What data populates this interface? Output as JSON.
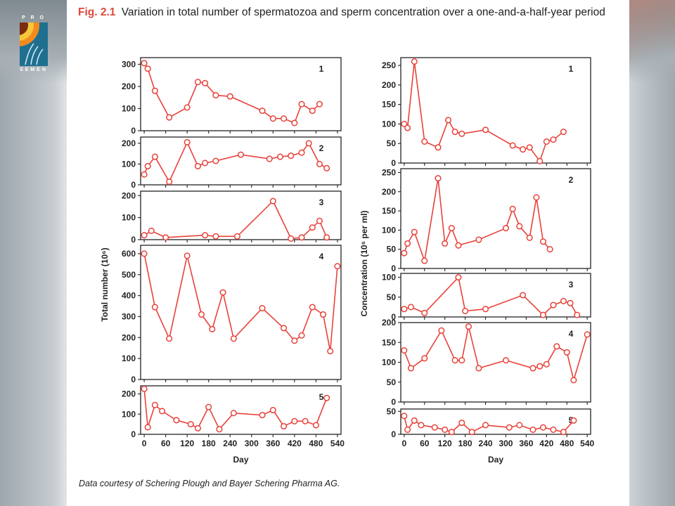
{
  "slide": {
    "logo": {
      "top_text": "P R O",
      "bottom_text": "SEMEN"
    },
    "figure_label": "Fig. 2.1",
    "figure_title": "Variation in total number of spermatozoa and sperm concentration over a one-and-a-half-year period",
    "credit": "Data courtesy of Schering Plough and Bayer Schering Pharma AG."
  },
  "colors": {
    "series": "#e8423a",
    "axis": "#222222",
    "title_label": "#e0453c"
  },
  "chart_data": [
    {
      "type": "line",
      "title": "",
      "panel_label": "1",
      "xlabel": "Day",
      "ylabel": "Total number (10⁶)",
      "xlim": [
        -10,
        550
      ],
      "ylim": [
        0,
        330
      ],
      "yticks": [
        0,
        100,
        200,
        300
      ],
      "xticks": [
        0,
        60,
        120,
        180,
        240,
        300,
        360,
        420,
        480,
        540
      ],
      "series": [
        {
          "x": [
            0,
            10,
            30,
            70,
            120,
            150,
            170,
            200,
            240,
            330,
            360,
            390,
            420,
            440,
            470,
            490
          ],
          "y": [
            305,
            280,
            180,
            60,
            105,
            220,
            215,
            160,
            155,
            90,
            55,
            55,
            35,
            120,
            90,
            120
          ]
        }
      ]
    },
    {
      "type": "line",
      "title": "",
      "panel_label": "2",
      "xlabel": "Day",
      "ylabel": "Total number (10⁶)",
      "xlim": [
        -10,
        550
      ],
      "ylim": [
        0,
        230
      ],
      "yticks": [
        0,
        100,
        200
      ],
      "xticks": [
        0,
        60,
        120,
        180,
        240,
        300,
        360,
        420,
        480,
        540
      ],
      "series": [
        {
          "x": [
            0,
            10,
            30,
            70,
            120,
            150,
            170,
            200,
            270,
            350,
            380,
            410,
            440,
            460,
            490,
            510
          ],
          "y": [
            50,
            90,
            135,
            15,
            205,
            90,
            105,
            115,
            145,
            125,
            135,
            140,
            155,
            200,
            100,
            80
          ]
        }
      ]
    },
    {
      "type": "line",
      "title": "",
      "panel_label": "3",
      "xlabel": "Day",
      "ylabel": "Total number (10⁶)",
      "xlim": [
        -10,
        550
      ],
      "ylim": [
        0,
        220
      ],
      "yticks": [
        0,
        100,
        200
      ],
      "xticks": [
        0,
        60,
        120,
        180,
        240,
        300,
        360,
        420,
        480,
        540
      ],
      "series": [
        {
          "x": [
            0,
            20,
            60,
            170,
            200,
            260,
            360,
            410,
            440,
            470,
            490,
            510
          ],
          "y": [
            20,
            40,
            10,
            20,
            15,
            15,
            175,
            5,
            10,
            55,
            85,
            10
          ]
        }
      ]
    },
    {
      "type": "line",
      "title": "",
      "panel_label": "4",
      "xlabel": "Day",
      "ylabel": "Total number (10⁶)",
      "xlim": [
        -10,
        550
      ],
      "ylim": [
        0,
        640
      ],
      "yticks": [
        0,
        100,
        200,
        300,
        400,
        500,
        600
      ],
      "xticks": [
        0,
        60,
        120,
        180,
        240,
        300,
        360,
        420,
        480,
        540
      ],
      "series": [
        {
          "x": [
            0,
            30,
            70,
            120,
            160,
            190,
            220,
            250,
            330,
            390,
            420,
            440,
            470,
            500,
            520,
            540
          ],
          "y": [
            600,
            345,
            195,
            590,
            310,
            240,
            415,
            195,
            340,
            245,
            185,
            210,
            345,
            310,
            135,
            540
          ]
        }
      ]
    },
    {
      "type": "line",
      "title": "",
      "panel_label": "5",
      "xlabel": "Day",
      "ylabel": "Total number (10⁶)",
      "xlim": [
        -10,
        550
      ],
      "ylim": [
        0,
        240
      ],
      "yticks": [
        0,
        100,
        200
      ],
      "xticks": [
        0,
        60,
        120,
        180,
        240,
        300,
        360,
        420,
        480,
        540
      ],
      "series": [
        {
          "x": [
            0,
            10,
            30,
            50,
            90,
            130,
            150,
            180,
            210,
            250,
            330,
            360,
            390,
            420,
            450,
            480,
            510
          ],
          "y": [
            225,
            35,
            145,
            115,
            70,
            50,
            30,
            135,
            25,
            105,
            95,
            120,
            40,
            65,
            65,
            45,
            180
          ]
        }
      ]
    },
    {
      "type": "line",
      "title": "",
      "panel_label": "1",
      "xlabel": "Day",
      "ylabel": "Concentration (10⁶ per ml)",
      "xlim": [
        -10,
        550
      ],
      "ylim": [
        0,
        270
      ],
      "yticks": [
        0,
        50,
        100,
        150,
        200,
        250
      ],
      "xticks": [
        0,
        60,
        120,
        180,
        240,
        300,
        360,
        420,
        480,
        540
      ],
      "series": [
        {
          "x": [
            0,
            10,
            30,
            60,
            100,
            130,
            150,
            170,
            240,
            320,
            350,
            370,
            400,
            420,
            440,
            470
          ],
          "y": [
            100,
            90,
            260,
            55,
            40,
            110,
            80,
            75,
            85,
            45,
            35,
            40,
            5,
            55,
            60,
            80
          ]
        }
      ]
    },
    {
      "type": "line",
      "title": "",
      "panel_label": "2",
      "xlabel": "Day",
      "ylabel": "Concentration (10⁶ per ml)",
      "xlim": [
        -10,
        550
      ],
      "ylim": [
        0,
        260
      ],
      "yticks": [
        0,
        50,
        100,
        150,
        200,
        250
      ],
      "xticks": [
        0,
        60,
        120,
        180,
        240,
        300,
        360,
        420,
        480,
        540
      ],
      "series": [
        {
          "x": [
            0,
            10,
            30,
            60,
            100,
            120,
            140,
            160,
            220,
            300,
            320,
            340,
            370,
            390,
            410,
            430
          ],
          "y": [
            40,
            65,
            95,
            20,
            235,
            65,
            105,
            60,
            75,
            105,
            155,
            110,
            80,
            185,
            70,
            50
          ]
        }
      ]
    },
    {
      "type": "line",
      "title": "",
      "panel_label": "3",
      "xlabel": "Day",
      "ylabel": "Concentration (10⁶ per ml)",
      "xlim": [
        -10,
        550
      ],
      "ylim": [
        0,
        110
      ],
      "yticks": [
        0,
        50,
        100
      ],
      "xticks": [
        0,
        60,
        120,
        180,
        240,
        300,
        360,
        420,
        480,
        540
      ],
      "series": [
        {
          "x": [
            0,
            20,
            60,
            160,
            180,
            240,
            350,
            410,
            440,
            470,
            490,
            510
          ],
          "y": [
            20,
            25,
            10,
            100,
            15,
            20,
            55,
            5,
            30,
            40,
            35,
            5
          ]
        }
      ]
    },
    {
      "type": "line",
      "title": "",
      "panel_label": "4",
      "xlabel": "Day",
      "ylabel": "Concentration (10⁶ per ml)",
      "xlim": [
        -10,
        550
      ],
      "ylim": [
        0,
        200
      ],
      "yticks": [
        0,
        50,
        100,
        150,
        200
      ],
      "xticks": [
        0,
        60,
        120,
        180,
        240,
        300,
        360,
        420,
        480,
        540
      ],
      "series": [
        {
          "x": [
            0,
            20,
            60,
            110,
            150,
            170,
            190,
            220,
            300,
            380,
            400,
            420,
            450,
            480,
            500,
            540
          ],
          "y": [
            130,
            85,
            110,
            180,
            105,
            105,
            190,
            85,
            105,
            85,
            90,
            95,
            140,
            125,
            55,
            170
          ]
        }
      ]
    },
    {
      "type": "line",
      "title": "",
      "panel_label": "5",
      "xlabel": "Day",
      "ylabel": "Concentration (10⁶ per ml)",
      "xlim": [
        -10,
        550
      ],
      "ylim": [
        0,
        55
      ],
      "yticks": [
        0,
        50
      ],
      "xticks": [
        0,
        60,
        120,
        180,
        240,
        300,
        360,
        420,
        480,
        540
      ],
      "series": [
        {
          "x": [
            0,
            10,
            30,
            50,
            90,
            120,
            140,
            170,
            200,
            240,
            310,
            340,
            380,
            410,
            440,
            470,
            500
          ],
          "y": [
            40,
            10,
            30,
            20,
            15,
            10,
            5,
            25,
            5,
            20,
            15,
            20,
            10,
            15,
            10,
            5,
            30
          ]
        }
      ]
    }
  ]
}
